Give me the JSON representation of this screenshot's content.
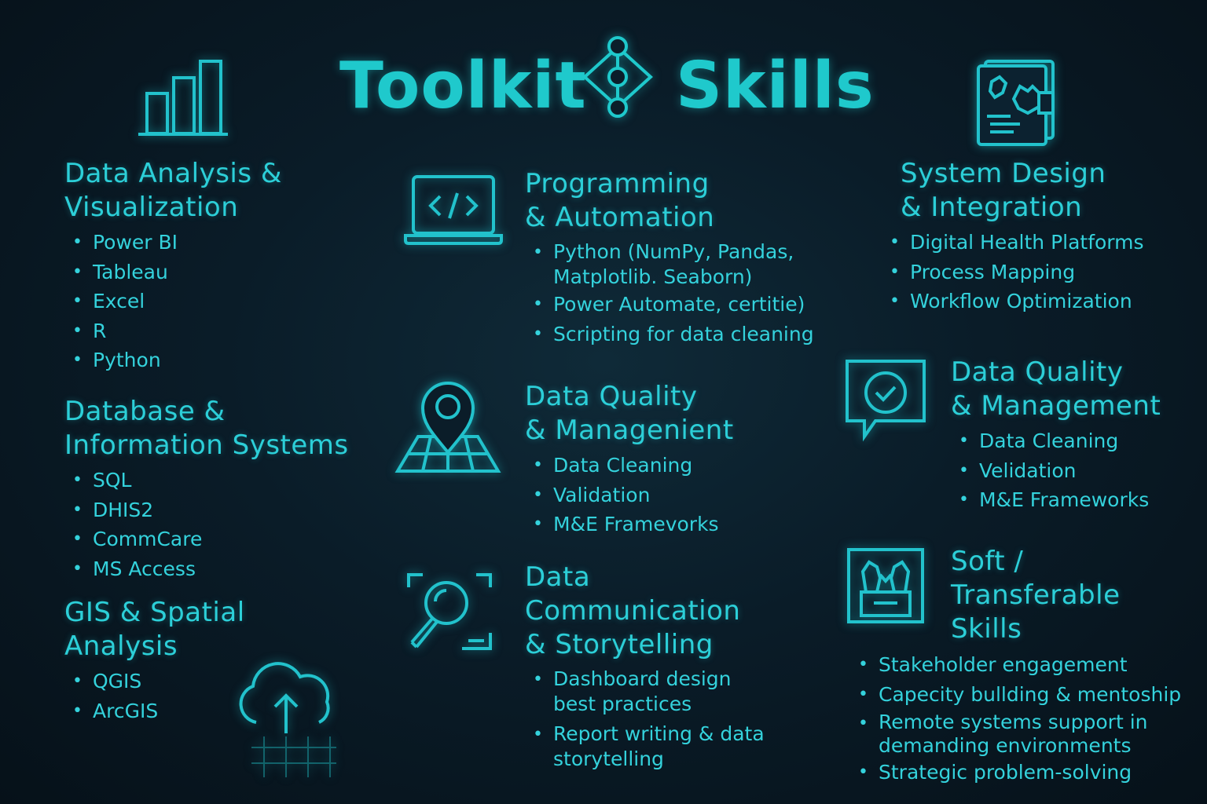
{
  "title": {
    "left": "Toolkit",
    "right": "Skills"
  },
  "colors": {
    "accent": "#27c6cf",
    "background": "#0a1c28"
  },
  "sections": {
    "data_analysis": {
      "icon": "bar-chart-icon",
      "heading": "Data Analysis &\nVisualization",
      "items": [
        "Power BI",
        "Tableau",
        "Excel",
        "R",
        "Python"
      ]
    },
    "database": {
      "heading": "Database &\nInformation Systems",
      "items": [
        "SQL",
        "DHIS2",
        "CommCare",
        "MS Access"
      ]
    },
    "gis": {
      "icon": "cloud-upload-icon",
      "heading": "GIS & Spatial\nAnalysis",
      "items": [
        "QGIS",
        "ArcGIS"
      ]
    },
    "programming": {
      "icon": "laptop-code-icon",
      "heading": "Programming\n& Automation",
      "items": [
        "Python (NumPy, Pandas,\nMatplotlib. Seaborn)",
        "Power Automate, certitie)",
        "Scripting for data cleaning"
      ]
    },
    "data_quality_mid": {
      "icon": "map-pin-icon",
      "heading": "Data Quality\n& Managenient",
      "items": [
        "Data Cleaning",
        "Validation",
        "M&E Framevorks"
      ]
    },
    "communication": {
      "icon": "magnifier-icon",
      "heading": "Data\nCommunication\n& Storytelling",
      "items": [
        "Dashboard design\nbest practices",
        "Report writing & data\nstorytelling"
      ]
    },
    "system_design": {
      "icon": "document-map-icon",
      "heading": "System Design\n& Integration",
      "items": [
        "Digital Health Platforms",
        "Process Mapping",
        "Workflow Optimization"
      ]
    },
    "data_quality_right": {
      "icon": "check-chat-icon",
      "heading": "Data Quality\n& Management",
      "items": [
        "Data Cleaning",
        "Velidation",
        "M&E Frameworks"
      ]
    },
    "soft_skills": {
      "icon": "people-frame-icon",
      "heading": "Soft /\nTransferable\nSkills",
      "items": [
        "Stakeholder engagement",
        "Capecity bullding & mentoship",
        "Remote systems support in\ndemanding environments",
        "Strategic problem-solving"
      ]
    }
  }
}
